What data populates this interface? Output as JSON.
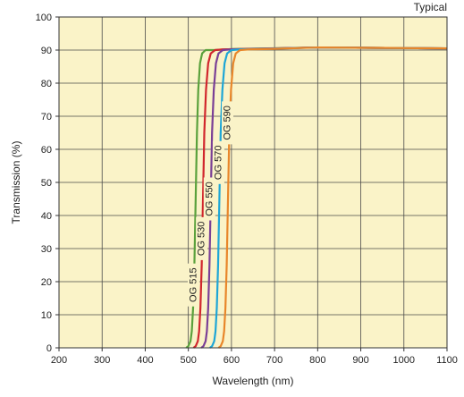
{
  "chart_data": {
    "type": "line",
    "title": "",
    "corner_label": "Typical",
    "xlabel": "Wavelength (nm)",
    "ylabel": "Transmission (%)",
    "xlim": [
      200,
      1100
    ],
    "ylim": [
      0,
      100
    ],
    "xticks": [
      "200",
      "300",
      "400",
      "500",
      "600",
      "700",
      "800",
      "900",
      "1000",
      "1100"
    ],
    "yticks": [
      "0",
      "10",
      "20",
      "30",
      "40",
      "50",
      "60",
      "70",
      "80",
      "90",
      "100"
    ],
    "grid": true,
    "background_color": "#faf3c8",
    "series": [
      {
        "name": "OG 515",
        "color": "#5aa13c",
        "x": [
          495,
          500,
          505,
          508,
          511,
          514,
          517,
          520,
          523,
          527,
          532,
          540,
          560,
          600,
          800,
          1100
        ],
        "y": [
          0,
          0.5,
          2,
          5,
          12,
          25,
          45,
          65,
          78,
          86,
          89,
          90,
          90,
          90.3,
          90.8,
          90.5
        ]
      },
      {
        "name": "OG 530",
        "color": "#d1262d",
        "x": [
          512,
          517,
          522,
          525,
          528,
          531,
          534,
          537,
          541,
          546,
          552,
          562,
          580,
          620,
          800,
          1100
        ],
        "y": [
          0,
          0.5,
          2,
          5,
          12,
          25,
          45,
          65,
          78,
          86,
          89,
          90,
          90.2,
          90.3,
          90.8,
          90.5
        ]
      },
      {
        "name": "OG 550",
        "color": "#7a3f96",
        "x": [
          530,
          535,
          540,
          543,
          546,
          549,
          552,
          555,
          559,
          564,
          570,
          580,
          600,
          640,
          800,
          1100
        ],
        "y": [
          0,
          0.5,
          2,
          5,
          12,
          25,
          45,
          65,
          78,
          86,
          89,
          90,
          90.2,
          90.3,
          90.8,
          90.5
        ]
      },
      {
        "name": "OG 570",
        "color": "#1ea6d6",
        "x": [
          550,
          555,
          560,
          563,
          566,
          569,
          572,
          575,
          579,
          584,
          590,
          600,
          620,
          660,
          800,
          1100
        ],
        "y": [
          0,
          0.5,
          2,
          5,
          12,
          25,
          45,
          65,
          78,
          86,
          89,
          90,
          90.2,
          90.3,
          90.8,
          90.5
        ]
      },
      {
        "name": "OG 590",
        "color": "#e8862a",
        "x": [
          570,
          575,
          580,
          583,
          586,
          589,
          592,
          595,
          599,
          604,
          610,
          620,
          640,
          680,
          800,
          1100
        ],
        "y": [
          0,
          0.5,
          2,
          5,
          12,
          25,
          45,
          65,
          78,
          86,
          89,
          90,
          90.2,
          90.3,
          90.8,
          90.5
        ]
      }
    ],
    "label_positions": [
      {
        "name": "OG 515",
        "x": 512,
        "y": 19
      },
      {
        "name": "OG 530",
        "x": 531,
        "y": 33
      },
      {
        "name": "OG 550",
        "x": 549,
        "y": 45
      },
      {
        "name": "OG 570",
        "x": 570,
        "y": 56
      },
      {
        "name": "OG 590",
        "x": 591,
        "y": 68
      }
    ]
  }
}
